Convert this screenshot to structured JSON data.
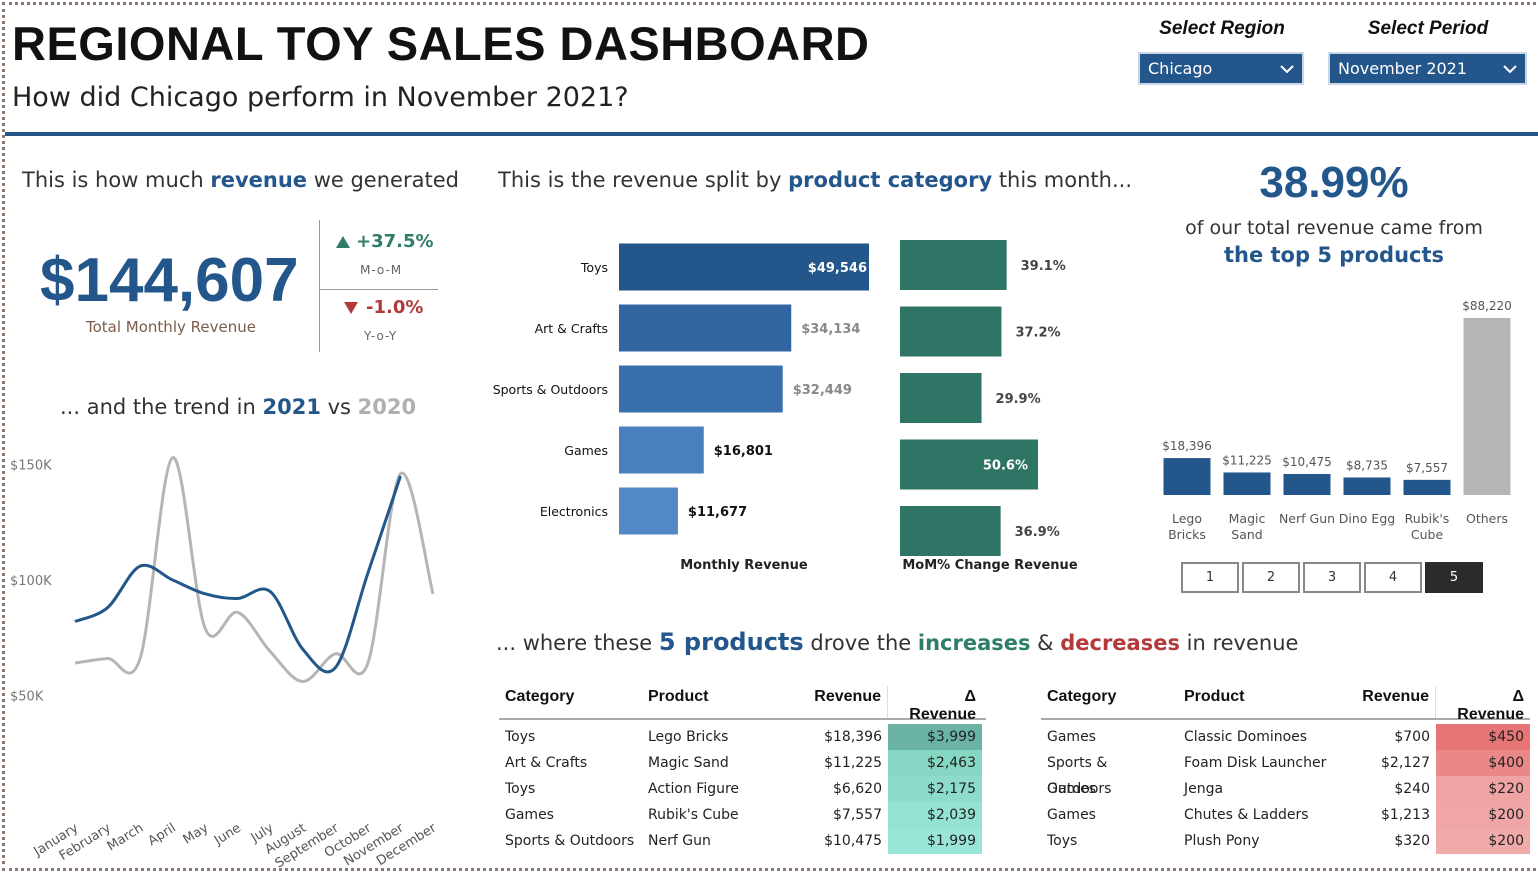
{
  "header": {
    "title": "REGIONAL TOY SALES DASHBOARD",
    "subtitle": "How did Chicago perform in November 2021?"
  },
  "slicers": {
    "region_label": "Select Region",
    "region_value": "Chicago",
    "period_label": "Select Period",
    "period_value": "November 2021"
  },
  "revenue_kpi": {
    "head_pre": "This is how much ",
    "head_em": "revenue",
    "head_post": " we generated",
    "value": "$144,607",
    "caption": "Total Monthly Revenue",
    "mom_value": "+37.5%",
    "mom_label": "M-o-M",
    "yoy_value": "-1.0%",
    "yoy_label": "Y-o-Y"
  },
  "trend": {
    "head_pre": "... and the trend in ",
    "head_2021": "2021",
    "head_mid": " vs ",
    "head_2020": "2020"
  },
  "category_section": {
    "head_pre": "This is the revenue split by ",
    "head_em": "product category",
    "head_post": " this month...",
    "revenue_axis": "Monthly Revenue",
    "mom_axis": "MoM% Change Revenue"
  },
  "top5": {
    "pct": "38.99%",
    "line1": "of our total revenue came from",
    "line2": "the top 5 products",
    "pages": [
      "1",
      "2",
      "3",
      "4",
      "5"
    ],
    "active_page": "5"
  },
  "drivers": {
    "head_pre": "... where these ",
    "head_em": "5 products",
    "head_mid1": " drove the ",
    "head_inc": "increases",
    "head_mid2": " & ",
    "head_dec": "decreases",
    "head_post": " in revenue",
    "columns": [
      "Category",
      "Product",
      "Revenue",
      "Δ Revenue"
    ],
    "increases": [
      {
        "category": "Toys",
        "product": "Lego Bricks",
        "revenue": "$18,396",
        "delta": "$3,999"
      },
      {
        "category": "Art & Crafts",
        "product": "Magic Sand",
        "revenue": "$11,225",
        "delta": "$2,463"
      },
      {
        "category": "Toys",
        "product": "Action Figure",
        "revenue": "$6,620",
        "delta": "$2,175"
      },
      {
        "category": "Games",
        "product": "Rubik's Cube",
        "revenue": "$7,557",
        "delta": "$2,039"
      },
      {
        "category": "Sports & Outdoors",
        "product": "Nerf Gun",
        "revenue": "$10,475",
        "delta": "$1,999"
      }
    ],
    "decreases": [
      {
        "category": "Games",
        "product": "Classic Dominoes",
        "revenue": "$700",
        "delta": "$450"
      },
      {
        "category": "Sports & Outdoors",
        "product": "Foam Disk Launcher",
        "revenue": "$2,127",
        "delta": "$400"
      },
      {
        "category": "Games",
        "product": "Jenga",
        "revenue": "$240",
        "delta": "$220"
      },
      {
        "category": "Games",
        "product": "Chutes & Ladders",
        "revenue": "$1,213",
        "delta": "$200"
      },
      {
        "category": "Toys",
        "product": "Plush Pony",
        "revenue": "$320",
        "delta": "$200"
      }
    ],
    "increase_colors": [
      "#6bb3a5",
      "#86d6c4",
      "#8ddccb",
      "#94e2d2",
      "#9ae6d6"
    ],
    "decrease_colors": [
      "#e87575",
      "#ec8787",
      "#f0a3a3",
      "#f0a6a6",
      "#f1aaaa"
    ]
  },
  "colors": {
    "brand_blue": "#23568a",
    "teal": "#2e7566",
    "grey": "#b5b5b5",
    "up": "#2e7d6a",
    "down": "#b33a3a"
  },
  "chart_data": [
    {
      "type": "line",
      "title": "",
      "x": [
        "January",
        "February",
        "March",
        "April",
        "May",
        "June",
        "July",
        "August",
        "September",
        "October",
        "November",
        "December"
      ],
      "series": [
        {
          "name": "2021",
          "color": "#23568a",
          "values": [
            82000,
            88000,
            106000,
            100000,
            94000,
            92000,
            95000,
            70000,
            62000,
            103000,
            145000,
            null
          ]
        },
        {
          "name": "2020",
          "color": "#b5b5b5",
          "values": [
            64000,
            66000,
            66000,
            153000,
            79000,
            86000,
            69000,
            56000,
            68000,
            64000,
            146000,
            94000
          ]
        }
      ],
      "yticks": [
        "$150K",
        "$100K",
        "$50K"
      ],
      "ytick_values": [
        150000,
        100000,
        50000
      ],
      "ylim": [
        35000,
        165000
      ]
    },
    {
      "type": "bar",
      "orientation": "horizontal",
      "categories": [
        "Toys",
        "Art & Crafts",
        "Sports & Outdoors",
        "Games",
        "Electronics"
      ],
      "values": [
        49546,
        34134,
        32449,
        16801,
        11677
      ],
      "labels": [
        "$49,546",
        "$34,134",
        "$32,449",
        "$16,801",
        "$11,677"
      ],
      "colors": [
        "#23568a",
        "#3166a2",
        "#3a6fad",
        "#4a7fbf",
        "#5388c7"
      ],
      "xlabel": "Monthly Revenue"
    },
    {
      "type": "bar",
      "orientation": "horizontal",
      "categories": [
        "Toys",
        "Art & Crafts",
        "Sports & Outdoors",
        "Games",
        "Electronics"
      ],
      "values": [
        39.1,
        37.2,
        29.9,
        50.6,
        36.9
      ],
      "labels": [
        "39.1%",
        "37.2%",
        "29.9%",
        "50.6%",
        "36.9%"
      ],
      "color": "#2e7566",
      "xlabel": "MoM% Change Revenue"
    },
    {
      "type": "bar",
      "categories": [
        "Lego Bricks",
        "Magic Sand",
        "Nerf Gun",
        "Dino Egg",
        "Rubik's Cube",
        "Others"
      ],
      "values": [
        18396,
        11225,
        10475,
        8735,
        7557,
        88220
      ],
      "labels": [
        "$18,396",
        "$11,225",
        "$10,475",
        "$8,735",
        "$7,557",
        "$88,220"
      ],
      "colors": [
        "#23568a",
        "#23568a",
        "#23568a",
        "#23568a",
        "#23568a",
        "#b5b5b5"
      ]
    }
  ]
}
